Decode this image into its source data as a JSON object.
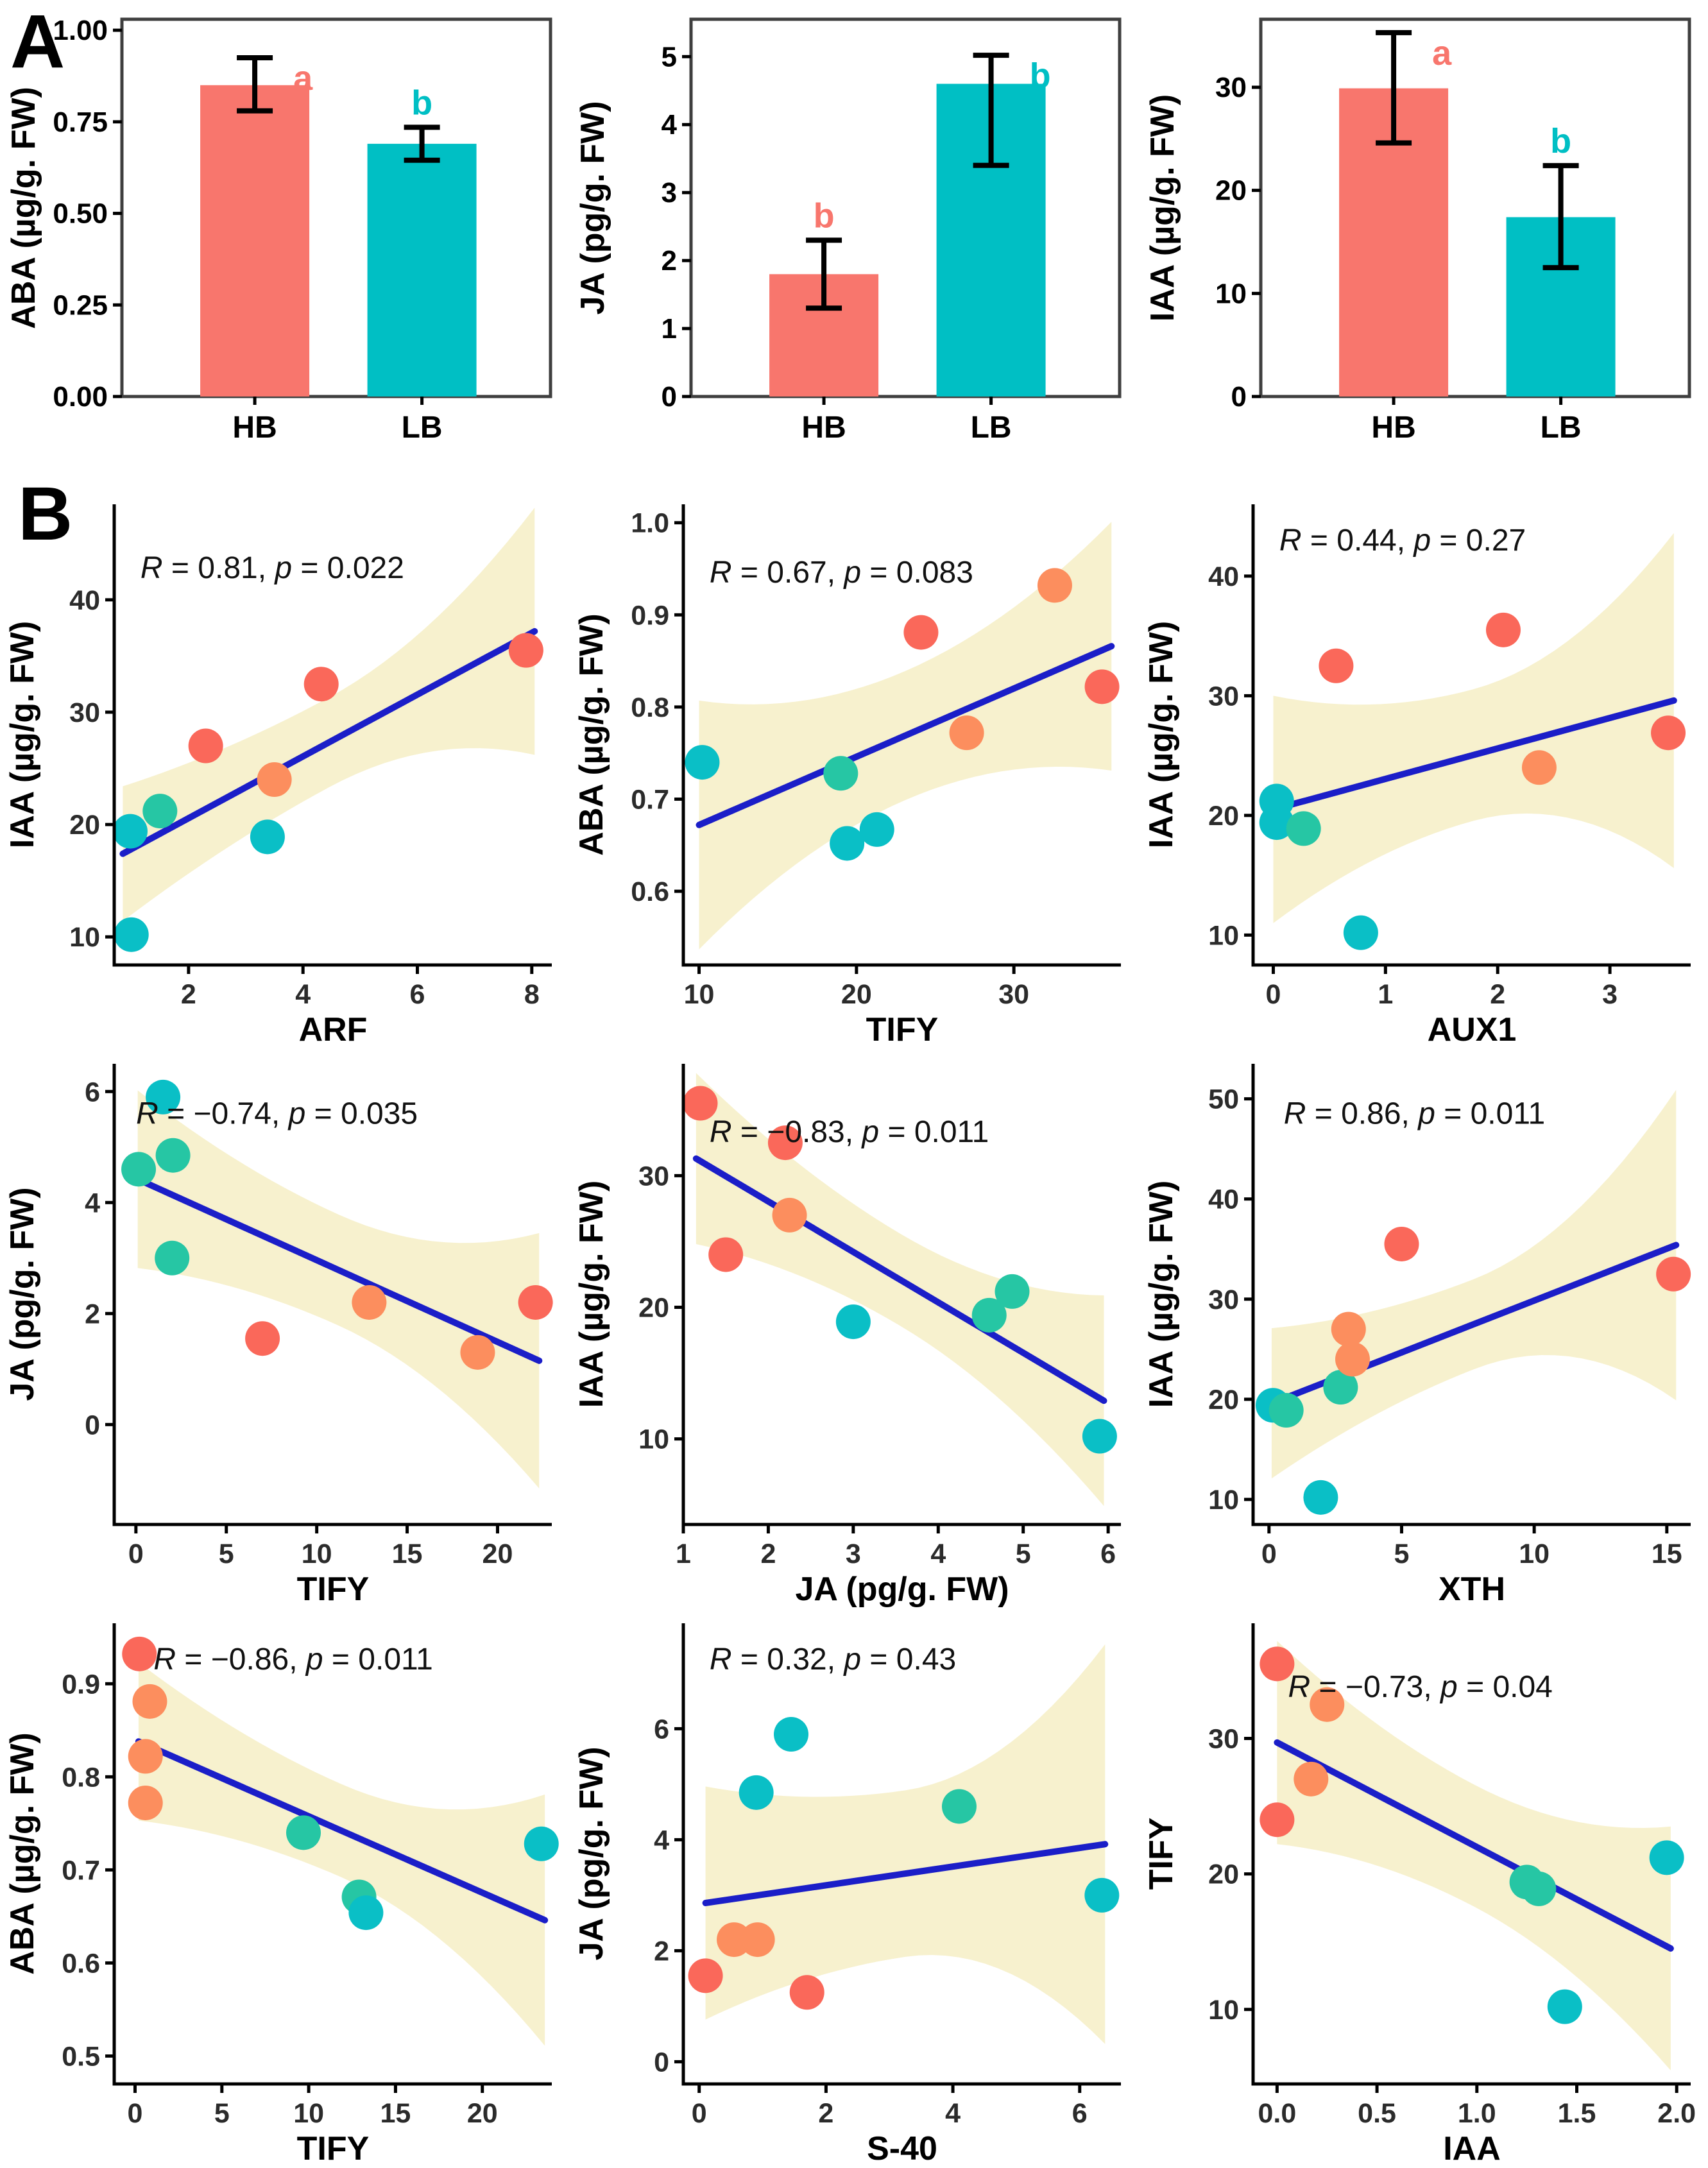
{
  "panel_a_label": "A",
  "panel_b_label": "B",
  "colors": {
    "bar_hb": "#F8766D",
    "bar_lb": "#00BFC4",
    "point_red": "#FA685A",
    "point_orange": "#FC8E5E",
    "point_green": "#26C6A4",
    "point_cyan": "#0ABFC6",
    "line": "#1B1EC8",
    "band": "#F7F1CE",
    "axis": "#000000",
    "frame": "#3F3F3F",
    "tick_text": "#2B2B2B",
    "stat_text": "#111111"
  },
  "chart_data": [
    {
      "id": "aba-bars",
      "type": "bar",
      "panel": "A",
      "ylabel": "ABA (µg/g. FW)",
      "categories": [
        "HB",
        "LB"
      ],
      "values": [
        0.85,
        0.69
      ],
      "errors_low": [
        0.78,
        0.645
      ],
      "errors_high": [
        0.925,
        0.735
      ],
      "letters": [
        "a",
        "b"
      ],
      "letter_colors": [
        "#F8766D",
        "#00BFC4"
      ],
      "bar_color_keys": [
        "bar_hb",
        "bar_lb"
      ],
      "ylim": [
        0,
        1.03
      ],
      "yticks": [
        0,
        0.25,
        0.5,
        0.75,
        1.0
      ],
      "ytick_labels": [
        "0.00",
        "0.25",
        "0.50",
        "0.75",
        "1.00"
      ]
    },
    {
      "id": "ja-bars",
      "type": "bar",
      "panel": "A",
      "ylabel": "JA (pg/g. FW)",
      "categories": [
        "HB",
        "LB"
      ],
      "values": [
        1.8,
        4.6
      ],
      "errors_low": [
        1.3,
        3.4
      ],
      "errors_high": [
        2.3,
        5.02
      ],
      "letters": [
        "b",
        "b"
      ],
      "letter_colors": [
        "#F8766D",
        "#00BFC4"
      ],
      "bar_color_keys": [
        "bar_hb",
        "bar_lb"
      ],
      "ylim": [
        0,
        5.55
      ],
      "yticks": [
        0,
        1,
        2,
        3,
        4,
        5
      ],
      "ytick_labels": [
        "0",
        "1",
        "2",
        "3",
        "4",
        "5"
      ]
    },
    {
      "id": "iaa-bars",
      "type": "bar",
      "panel": "A",
      "ylabel": "IAA (µg/g. FW)",
      "categories": [
        "HB",
        "LB"
      ],
      "values": [
        29.9,
        17.4
      ],
      "errors_low": [
        24.6,
        12.5
      ],
      "errors_high": [
        35.3,
        22.4
      ],
      "letters": [
        "a",
        "b"
      ],
      "letter_colors": [
        "#F8766D",
        "#00BFC4"
      ],
      "bar_color_keys": [
        "bar_hb",
        "bar_lb"
      ],
      "ylim": [
        0,
        36.6
      ],
      "yticks": [
        0,
        10,
        20,
        30
      ],
      "ytick_labels": [
        "0",
        "10",
        "20",
        "30"
      ]
    },
    {
      "id": "iaa-arf",
      "type": "scatter",
      "panel": "B",
      "xlabel": "ARF",
      "ylabel": "IAA (µg/g. FW)",
      "stat": {
        "r_label": "R",
        "r_rest": " = 0.81, ",
        "p_label": "p",
        "p_rest": " = 0.022"
      },
      "label_pos": [
        0.06,
        0.16
      ],
      "xlim": [
        0.7,
        8.35
      ],
      "ylim": [
        7.5,
        48.5
      ],
      "xticks": [
        2,
        4,
        6,
        8
      ],
      "xtick_labels": [
        "2",
        "4",
        "6",
        "8"
      ],
      "yticks": [
        10,
        20,
        30,
        40
      ],
      "ytick_labels": [
        "10",
        "20",
        "30",
        "40"
      ],
      "line": {
        "x1": 0.85,
        "y1": 17.4,
        "x2": 8.05,
        "y2": 37.2
      },
      "band_halfwidths": [
        6.0,
        4.0,
        11.0
      ],
      "points": [
        {
          "x": 0.98,
          "y": 19.4,
          "c": "cyan"
        },
        {
          "x": 1.5,
          "y": 21.2,
          "c": "green"
        },
        {
          "x": 3.38,
          "y": 18.9,
          "c": "cyan"
        },
        {
          "x": 1.0,
          "y": 10.2,
          "c": "cyan"
        },
        {
          "x": 2.3,
          "y": 27.0,
          "c": "red"
        },
        {
          "x": 3.5,
          "y": 24.0,
          "c": "orange"
        },
        {
          "x": 4.32,
          "y": 32.5,
          "c": "red"
        },
        {
          "x": 7.9,
          "y": 35.5,
          "c": "red"
        }
      ]
    },
    {
      "id": "aba-tify",
      "type": "scatter",
      "panel": "B",
      "xlabel": "TIFY",
      "ylabel": "ABA (µg/g. FW)",
      "stat": {
        "r_label": "R",
        "r_rest": " = 0.67, ",
        "p_label": "p",
        "p_rest": " = 0.083"
      },
      "label_pos": [
        0.06,
        0.17
      ],
      "xlim": [
        9,
        36.8
      ],
      "ylim": [
        0.52,
        1.02
      ],
      "xticks": [
        10,
        20,
        30
      ],
      "xtick_labels": [
        "10",
        "20",
        "30"
      ],
      "yticks": [
        0.6,
        0.7,
        0.8,
        0.9,
        1.0
      ],
      "ytick_labels": [
        "0.6",
        "0.7",
        "0.8",
        "0.9",
        "1.0"
      ],
      "line": {
        "x1": 10,
        "y1": 0.672,
        "x2": 36.2,
        "y2": 0.866
      },
      "band_halfwidths": [
        0.135,
        0.07,
        0.135
      ],
      "points": [
        {
          "x": 10.2,
          "y": 0.74,
          "c": "cyan"
        },
        {
          "x": 19.0,
          "y": 0.728,
          "c": "green"
        },
        {
          "x": 19.4,
          "y": 0.652,
          "c": "cyan"
        },
        {
          "x": 21.3,
          "y": 0.667,
          "c": "cyan"
        },
        {
          "x": 24.1,
          "y": 0.881,
          "c": "red"
        },
        {
          "x": 27.0,
          "y": 0.772,
          "c": "orange"
        },
        {
          "x": 32.6,
          "y": 0.932,
          "c": "orange"
        },
        {
          "x": 35.6,
          "y": 0.822,
          "c": "red"
        }
      ]
    },
    {
      "id": "iaa-aux1",
      "type": "scatter",
      "panel": "B",
      "xlabel": "AUX1",
      "ylabel": "IAA (µg/g. FW)",
      "stat": {
        "r_label": "R",
        "r_rest": " = 0.44, ",
        "p_label": "p",
        "p_rest": " = 0.27"
      },
      "label_pos": [
        0.06,
        0.1
      ],
      "xlim": [
        -0.18,
        3.72
      ],
      "ylim": [
        7.5,
        46
      ],
      "xticks": [
        0,
        1,
        2,
        3
      ],
      "xtick_labels": [
        "0",
        "1",
        "2",
        "3"
      ],
      "yticks": [
        10,
        20,
        30,
        40
      ],
      "ytick_labels": [
        "10",
        "20",
        "30",
        "40"
      ],
      "line": {
        "x1": 0.0,
        "y1": 20.5,
        "x2": 3.57,
        "y2": 29.6
      },
      "band_halfwidths": [
        9.5,
        5.5,
        14.0
      ],
      "points": [
        {
          "x": 0.03,
          "y": 21.2,
          "c": "cyan"
        },
        {
          "x": 0.03,
          "y": 19.4,
          "c": "cyan"
        },
        {
          "x": 0.27,
          "y": 18.9,
          "c": "green"
        },
        {
          "x": 0.78,
          "y": 10.2,
          "c": "cyan"
        },
        {
          "x": 0.56,
          "y": 32.5,
          "c": "red"
        },
        {
          "x": 2.05,
          "y": 35.5,
          "c": "red"
        },
        {
          "x": 2.37,
          "y": 24.0,
          "c": "orange"
        },
        {
          "x": 3.52,
          "y": 26.9,
          "c": "red"
        }
      ]
    },
    {
      "id": "ja-tify",
      "type": "scatter",
      "panel": "B",
      "xlabel": "TIFY",
      "ylabel": "JA (pg/g. FW)",
      "stat": {
        "r_label": "R",
        "r_rest": " = −0.74, ",
        "p_label": "p",
        "p_rest": " = 0.035"
      },
      "label_pos": [
        0.05,
        0.13
      ],
      "xlim": [
        -1.2,
        23
      ],
      "ylim": [
        -1.8,
        6.5
      ],
      "xticks": [
        0,
        5,
        10,
        15,
        20
      ],
      "xtick_labels": [
        "0",
        "5",
        "10",
        "15",
        "20"
      ],
      "yticks": [
        0,
        2,
        4,
        6
      ],
      "ytick_labels": [
        "0",
        "2",
        "4",
        "6"
      ],
      "line": {
        "x1": 0.1,
        "y1": 4.42,
        "x2": 22.3,
        "y2": 1.15
      },
      "band_halfwidths": [
        1.6,
        1.0,
        2.3
      ],
      "points": [
        {
          "x": 0.15,
          "y": 4.6,
          "c": "green"
        },
        {
          "x": 1.5,
          "y": 5.9,
          "c": "cyan"
        },
        {
          "x": 2.05,
          "y": 4.85,
          "c": "green"
        },
        {
          "x": 2.0,
          "y": 3.0,
          "c": "green"
        },
        {
          "x": 7.0,
          "y": 1.55,
          "c": "red"
        },
        {
          "x": 12.9,
          "y": 2.2,
          "c": "orange"
        },
        {
          "x": 18.9,
          "y": 1.3,
          "c": "orange"
        },
        {
          "x": 22.1,
          "y": 2.2,
          "c": "red"
        }
      ]
    },
    {
      "id": "iaa-ja",
      "type": "scatter",
      "panel": "B",
      "xlabel": "JA (pg/g. FW)",
      "ylabel": "IAA (µg/g. FW)",
      "stat": {
        "r_label": "R",
        "r_rest": " = −0.83, ",
        "p_label": "p",
        "p_rest": " = 0.011"
      },
      "label_pos": [
        0.06,
        0.17
      ],
      "xlim": [
        1.0,
        6.15
      ],
      "ylim": [
        3.5,
        38.5
      ],
      "xticks": [
        1,
        2,
        3,
        4,
        5,
        6
      ],
      "xtick_labels": [
        "1",
        "2",
        "3",
        "4",
        "5",
        "6"
      ],
      "yticks": [
        10,
        20,
        30
      ],
      "ytick_labels": [
        "10",
        "20",
        "30"
      ],
      "line": {
        "x1": 1.15,
        "y1": 31.3,
        "x2": 5.95,
        "y2": 12.9
      },
      "band_halfwidths": [
        6.5,
        3.5,
        8.0
      ],
      "points": [
        {
          "x": 1.2,
          "y": 35.5,
          "c": "red"
        },
        {
          "x": 1.5,
          "y": 24.0,
          "c": "red"
        },
        {
          "x": 2.2,
          "y": 32.5,
          "c": "red"
        },
        {
          "x": 2.25,
          "y": 27.0,
          "c": "orange"
        },
        {
          "x": 3.0,
          "y": 18.9,
          "c": "cyan"
        },
        {
          "x": 4.6,
          "y": 19.4,
          "c": "green"
        },
        {
          "x": 4.87,
          "y": 21.2,
          "c": "green"
        },
        {
          "x": 5.9,
          "y": 10.2,
          "c": "cyan"
        }
      ]
    },
    {
      "id": "iaa-xth",
      "type": "scatter",
      "panel": "B",
      "xlabel": "XTH",
      "ylabel": "IAA (µg/g. FW)",
      "stat": {
        "r_label": "R",
        "r_rest": " = 0.86, ",
        "p_label": "p",
        "p_rest": " = 0.011"
      },
      "label_pos": [
        0.07,
        0.13
      ],
      "xlim": [
        -0.6,
        15.9
      ],
      "ylim": [
        7.5,
        53.5
      ],
      "xticks": [
        0,
        5,
        10,
        15
      ],
      "xtick_labels": [
        "0",
        "5",
        "10",
        "15"
      ],
      "yticks": [
        10,
        20,
        30,
        40,
        50
      ],
      "ytick_labels": [
        "10",
        "20",
        "30",
        "40",
        "50"
      ],
      "line": {
        "x1": 0.1,
        "y1": 19.6,
        "x2": 15.35,
        "y2": 35.4
      },
      "band_halfwidths": [
        7.5,
        4.5,
        15.5
      ],
      "points": [
        {
          "x": 0.15,
          "y": 19.4,
          "c": "cyan"
        },
        {
          "x": 0.65,
          "y": 18.9,
          "c": "green"
        },
        {
          "x": 2.7,
          "y": 21.2,
          "c": "green"
        },
        {
          "x": 1.95,
          "y": 10.2,
          "c": "cyan"
        },
        {
          "x": 5.0,
          "y": 35.5,
          "c": "red"
        },
        {
          "x": 3.0,
          "y": 27.0,
          "c": "orange"
        },
        {
          "x": 3.15,
          "y": 24.0,
          "c": "orange"
        },
        {
          "x": 15.25,
          "y": 32.5,
          "c": "red"
        }
      ]
    },
    {
      "id": "aba-tify2",
      "type": "scatter",
      "panel": "B",
      "xlabel": "TIFY",
      "ylabel": "ABA (µg/g. FW)",
      "stat": {
        "r_label": "R",
        "r_rest": " = −0.86, ",
        "p_label": "p",
        "p_rest": " = 0.011"
      },
      "label_pos": [
        0.09,
        0.1
      ],
      "xlim": [
        -1.2,
        24
      ],
      "ylim": [
        0.47,
        0.965
      ],
      "xticks": [
        0,
        5,
        10,
        15,
        20
      ],
      "xtick_labels": [
        "0",
        "5",
        "10",
        "15",
        "20"
      ],
      "yticks": [
        0.5,
        0.6,
        0.7,
        0.8,
        0.9
      ],
      "ytick_labels": [
        "0.5",
        "0.6",
        "0.7",
        "0.8",
        "0.9"
      ],
      "line": {
        "x1": 0.2,
        "y1": 0.838,
        "x2": 23.6,
        "y2": 0.646
      },
      "band_halfwidths": [
        0.085,
        0.05,
        0.135
      ],
      "points": [
        {
          "x": 0.25,
          "y": 0.932,
          "c": "red"
        },
        {
          "x": 0.85,
          "y": 0.881,
          "c": "orange"
        },
        {
          "x": 0.6,
          "y": 0.822,
          "c": "orange"
        },
        {
          "x": 0.6,
          "y": 0.772,
          "c": "orange"
        },
        {
          "x": 9.7,
          "y": 0.74,
          "c": "green"
        },
        {
          "x": 12.9,
          "y": 0.671,
          "c": "green"
        },
        {
          "x": 13.3,
          "y": 0.654,
          "c": "cyan"
        },
        {
          "x": 23.4,
          "y": 0.728,
          "c": "cyan"
        }
      ]
    },
    {
      "id": "ja-s40",
      "type": "scatter",
      "panel": "B",
      "xlabel": "S-40",
      "ylabel": "JA (pg/g. FW)",
      "stat": {
        "r_label": "R",
        "r_rest": " = 0.32, ",
        "p_label": "p",
        "p_rest": " = 0.43"
      },
      "label_pos": [
        0.06,
        0.1
      ],
      "xlim": [
        -0.25,
        6.65
      ],
      "ylim": [
        -0.4,
        7.9
      ],
      "xticks": [
        0,
        2,
        4,
        6
      ],
      "xtick_labels": [
        "0",
        "2",
        "4",
        "6"
      ],
      "yticks": [
        0,
        2,
        4,
        6
      ],
      "ytick_labels": [
        "0",
        "2",
        "4",
        "6"
      ],
      "line": {
        "x1": 0.1,
        "y1": 2.86,
        "x2": 6.4,
        "y2": 3.92
      },
      "band_halfwidths": [
        2.1,
        1.5,
        3.6
      ],
      "points": [
        {
          "x": 1.45,
          "y": 5.9,
          "c": "cyan"
        },
        {
          "x": 0.9,
          "y": 4.85,
          "c": "cyan"
        },
        {
          "x": 4.1,
          "y": 4.6,
          "c": "green"
        },
        {
          "x": 6.35,
          "y": 3.0,
          "c": "cyan"
        },
        {
          "x": 0.1,
          "y": 1.55,
          "c": "red"
        },
        {
          "x": 0.55,
          "y": 2.2,
          "c": "orange"
        },
        {
          "x": 0.92,
          "y": 2.2,
          "c": "orange"
        },
        {
          "x": 1.7,
          "y": 1.25,
          "c": "red"
        }
      ]
    },
    {
      "id": "tify-iaa",
      "type": "scatter",
      "panel": "B",
      "xlabel": "IAA",
      "ylabel": "TIFY",
      "stat": {
        "r_label": "R",
        "r_rest": " = −0.73, ",
        "p_label": "p",
        "p_rest": " = 0.04"
      },
      "label_pos": [
        0.08,
        0.16
      ],
      "xlim": [
        -0.12,
        2.07
      ],
      "ylim": [
        4.5,
        38.5
      ],
      "xticks": [
        0.0,
        0.5,
        1.0,
        1.5,
        2.0
      ],
      "xtick_labels": [
        "0.0",
        "0.5",
        "1.0",
        "1.5",
        "2.0"
      ],
      "yticks": [
        10,
        20,
        30
      ],
      "ytick_labels": [
        "10",
        "20",
        "30"
      ],
      "line": {
        "x1": 0.0,
        "y1": 29.7,
        "x2": 1.97,
        "y2": 14.5
      },
      "band_halfwidths": [
        7.5,
        4.5,
        9.0
      ],
      "points": [
        {
          "x": 0.0,
          "y": 35.5,
          "c": "red"
        },
        {
          "x": 0.25,
          "y": 32.5,
          "c": "orange"
        },
        {
          "x": 0.17,
          "y": 27.0,
          "c": "orange"
        },
        {
          "x": 0.0,
          "y": 24.0,
          "c": "red"
        },
        {
          "x": 1.25,
          "y": 19.4,
          "c": "green"
        },
        {
          "x": 1.31,
          "y": 18.9,
          "c": "green"
        },
        {
          "x": 1.44,
          "y": 10.2,
          "c": "cyan"
        },
        {
          "x": 1.95,
          "y": 21.2,
          "c": "cyan"
        }
      ]
    }
  ]
}
